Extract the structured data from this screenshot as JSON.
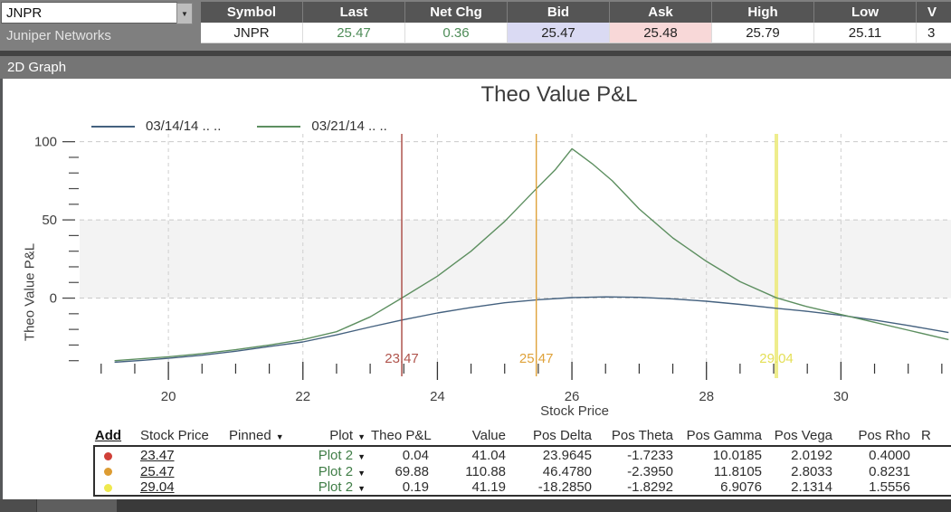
{
  "ui": {
    "dropdown_glyph": "▼"
  },
  "quote_bar": {
    "symbol_input": "JNPR",
    "company_name": "Juniper Networks",
    "table": {
      "columns": [
        "Symbol",
        "Last",
        "Net Chg",
        "Bid",
        "Ask",
        "High",
        "Low",
        "V"
      ],
      "row": {
        "symbol": "JNPR",
        "last": "25.47",
        "net_chg": "0.36",
        "bid": "25.47",
        "ask": "25.48",
        "high": "25.79",
        "low": "25.11",
        "v": "3"
      },
      "colors": {
        "up_text": "#4e8c58",
        "bid_bg": "#dadaf3",
        "ask_bg": "#f8d8d8"
      }
    }
  },
  "graph_panel": {
    "titlebar": "2D Graph"
  },
  "chart_data": {
    "type": "line",
    "title": "Theo Value P&L",
    "xlabel": "Stock Price",
    "ylabel": "Theo Value P&L",
    "xlim": [
      18.68,
      31.65
    ],
    "ylim": [
      -50,
      105
    ],
    "x_major_ticks": [
      20,
      22,
      24,
      26,
      28,
      30
    ],
    "x_minor_step": 0.5,
    "y_major_ticks": [
      0,
      50,
      100
    ],
    "y_minor_step": 10,
    "grid": "dashed-on-majors",
    "band": {
      "from": 0,
      "to": 50,
      "color": "#f3f3f3"
    },
    "legend_position": "top-left",
    "series": [
      {
        "name": "03/14/14  .. ..",
        "color": "#44617f",
        "x": [
          19.2,
          19.6,
          20,
          20.5,
          21,
          21.5,
          22,
          22.5,
          23,
          23.47,
          24,
          24.5,
          25,
          25.5,
          26,
          26.5,
          27,
          27.5,
          28,
          28.5,
          29.04,
          29.5,
          30,
          30.5,
          31,
          31.6
        ],
        "y": [
          -41,
          -39.8,
          -38.5,
          -36.5,
          -34,
          -31,
          -28,
          -23.5,
          -18.5,
          -14,
          -9.5,
          -6,
          -3,
          -1,
          0.3,
          0.8,
          0.5,
          -0.5,
          -2,
          -4,
          -6.5,
          -8.5,
          -11,
          -14,
          -17.5,
          -22
        ]
      },
      {
        "name": "03/21/14  .. ..",
        "color": "#5d8f60",
        "x": [
          19.2,
          19.6,
          20,
          20.5,
          21,
          21.5,
          22,
          22.5,
          23,
          23.47,
          24,
          24.5,
          25,
          25.47,
          25.75,
          26,
          26.3,
          26.6,
          27,
          27.5,
          28,
          28.5,
          29.04,
          29.5,
          30,
          30.5,
          31,
          31.6
        ],
        "y": [
          -40,
          -38.8,
          -37.5,
          -35.5,
          -33,
          -30,
          -26.5,
          -21.5,
          -12,
          0,
          14,
          30,
          49,
          69.9,
          82,
          95.5,
          86,
          75,
          57,
          38.5,
          23.5,
          10.5,
          0.2,
          -5.5,
          -10.5,
          -15.5,
          -20.5,
          -26.5
        ]
      }
    ],
    "markers": [
      {
        "x": 23.47,
        "label": "23.47",
        "color": "#a84741",
        "label_color": "#b0544c",
        "width": 1.4,
        "over_curves": true
      },
      {
        "x": 25.47,
        "label": "25.47",
        "color": "#dfa23a",
        "label_color": "#dfa23a",
        "width": 1.4,
        "over_curves": true
      },
      {
        "x": 29.04,
        "label": "29.04",
        "color": "#ecea79",
        "label_color": "#e4df55",
        "width": 4,
        "over_curves": false
      }
    ]
  },
  "positions_table": {
    "headers": [
      {
        "label": "Add"
      },
      {
        "label": "Stock Price"
      },
      {
        "label": "Pinned",
        "arrow": true
      },
      {
        "label": "Plot",
        "arrow": true
      },
      {
        "label": "Theo P&L"
      },
      {
        "label": "Value"
      },
      {
        "label": "Pos Delta"
      },
      {
        "label": "Pos Theta"
      },
      {
        "label": "Pos Gamma"
      },
      {
        "label": "Pos Vega"
      },
      {
        "label": "Pos Rho"
      },
      {
        "label": "R"
      }
    ],
    "rows": [
      {
        "dot_color": "#d04038",
        "stock_price": "23.47",
        "pinned": "",
        "plot": "Plot 2",
        "theo_pl": "0.04",
        "value": "41.04",
        "pos_delta": "23.9645",
        "pos_theta": "-1.7233",
        "pos_gamma": "10.0185",
        "pos_vega": "2.0192",
        "pos_rho": "0.4000"
      },
      {
        "dot_color": "#dd9c32",
        "stock_price": "25.47",
        "pinned": "",
        "plot": "Plot 2",
        "theo_pl": "69.88",
        "value": "110.88",
        "pos_delta": "46.4780",
        "pos_theta": "-2.3950",
        "pos_gamma": "11.8105",
        "pos_vega": "2.8033",
        "pos_rho": "0.8231"
      },
      {
        "dot_color": "#efe94e",
        "stock_price": "29.04",
        "pinned": "",
        "plot": "Plot 2",
        "theo_pl": "0.19",
        "value": "41.19",
        "pos_delta": "-18.2850",
        "pos_theta": "-1.8292",
        "pos_gamma": "6.9076",
        "pos_vega": "2.1314",
        "pos_rho": "1.5556"
      }
    ]
  }
}
